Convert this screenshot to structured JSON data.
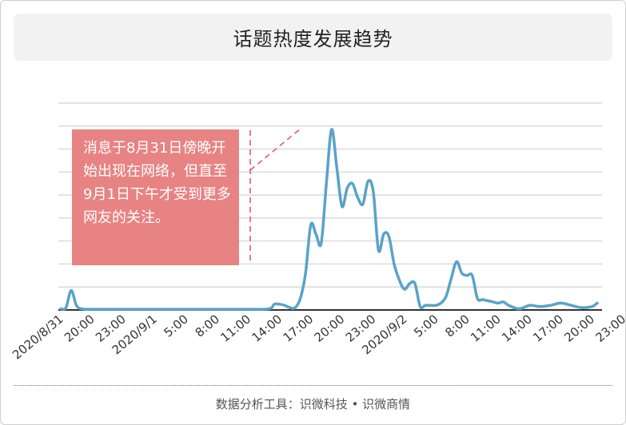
{
  "title": "话题热度发展趋势",
  "annotation": "消息于8月31日傍晚开始出现在网络，但直至9月1日下午才受到更多网友的关注。",
  "footer": "数据分析工具：识微科技 • 识微商情",
  "colors": {
    "line": "#5aa3c8",
    "annotation_bg": "#e88383",
    "dash": "#e05a6a",
    "grid": "#d3d3d3",
    "axis": "#333333"
  },
  "chart_data": {
    "type": "line",
    "title": "话题热度发展趋势",
    "xlabel": "",
    "ylabel": "",
    "grid": true,
    "legend": "none",
    "x_tick_labels": [
      "2020/8/31",
      "20:00",
      "23:00",
      "2020/9/1",
      "5:00",
      "8:00",
      "11:00",
      "14:00",
      "17:00",
      "20:00",
      "23:00",
      "2020/9/2",
      "5:00",
      "8:00",
      "11:00",
      "14:00",
      "17:00",
      "20:00",
      "23:00"
    ],
    "x_unit": "hours since 2020/8/31 17:00",
    "ylim": [
      0,
      9
    ],
    "series": [
      {
        "values": [
          [
            0,
            0.05
          ],
          [
            0.5,
            0.1
          ],
          [
            1,
            0.85
          ],
          [
            1.5,
            0.2
          ],
          [
            2,
            0.05
          ],
          [
            3,
            0.03
          ],
          [
            6,
            0.03
          ],
          [
            12,
            0.03
          ],
          [
            18,
            0.03
          ],
          [
            20,
            0.05
          ],
          [
            20.5,
            0.25
          ],
          [
            21,
            0.25
          ],
          [
            21.5,
            0.2
          ],
          [
            22,
            0.1
          ],
          [
            22.5,
            0.1
          ],
          [
            23,
            0.5
          ],
          [
            23.5,
            1.6
          ],
          [
            24,
            3.7
          ],
          [
            24.5,
            3.3
          ],
          [
            25,
            2.9
          ],
          [
            25.5,
            5.5
          ],
          [
            26,
            7.85
          ],
          [
            26.5,
            6.2
          ],
          [
            27,
            4.5
          ],
          [
            27.5,
            5.3
          ],
          [
            28,
            5.5
          ],
          [
            28.5,
            4.9
          ],
          [
            29,
            4.6
          ],
          [
            29.5,
            5.6
          ],
          [
            30,
            5.15
          ],
          [
            30.5,
            2.6
          ],
          [
            31,
            3.3
          ],
          [
            31.5,
            3.2
          ],
          [
            32,
            2.0
          ],
          [
            32.5,
            1.3
          ],
          [
            33,
            0.9
          ],
          [
            33.5,
            1.15
          ],
          [
            34,
            1.15
          ],
          [
            34.5,
            0.15
          ],
          [
            35,
            0.2
          ],
          [
            35.5,
            0.2
          ],
          [
            36,
            0.2
          ],
          [
            36.5,
            0.3
          ],
          [
            37,
            0.6
          ],
          [
            37.5,
            1.4
          ],
          [
            38,
            2.1
          ],
          [
            38.5,
            1.6
          ],
          [
            39,
            1.5
          ],
          [
            39.5,
            1.5
          ],
          [
            40,
            0.5
          ],
          [
            40.5,
            0.45
          ],
          [
            41,
            0.4
          ],
          [
            41.5,
            0.35
          ],
          [
            42,
            0.3
          ],
          [
            42.5,
            0.35
          ],
          [
            43,
            0.2
          ],
          [
            44,
            0.05
          ],
          [
            45,
            0.2
          ],
          [
            46,
            0.15
          ],
          [
            47,
            0.2
          ],
          [
            48,
            0.3
          ],
          [
            49,
            0.2
          ],
          [
            50,
            0.1
          ],
          [
            51,
            0.15
          ],
          [
            51.5,
            0.3
          ]
        ]
      }
    ]
  }
}
